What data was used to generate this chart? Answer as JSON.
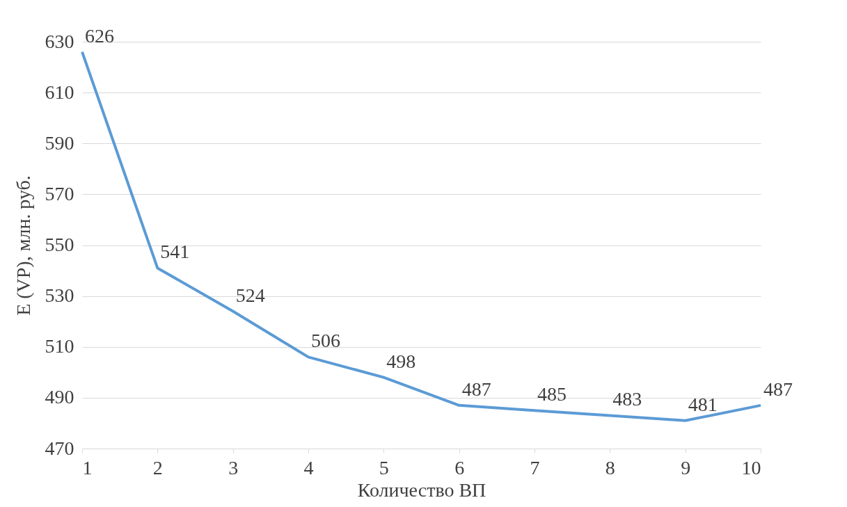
{
  "chart_data": {
    "type": "line",
    "xlabel": "Количество ВП",
    "ylabel": "E (VP),  млн. руб.",
    "x": [
      1,
      2,
      3,
      4,
      5,
      6,
      7,
      8,
      9,
      10
    ],
    "series": [
      {
        "color": "#5b9bd5",
        "values": [
          626,
          541,
          524,
          506,
          498,
          487,
          485,
          483,
          481,
          487
        ]
      }
    ],
    "xlim": [
      1,
      10
    ],
    "xticks": [
      1,
      2,
      3,
      4,
      5,
      6,
      7,
      8,
      9,
      10
    ],
    "ylim": [
      470,
      630
    ],
    "yticks": [
      470,
      490,
      510,
      530,
      550,
      570,
      590,
      610,
      630
    ],
    "grid": "y",
    "data_labels": true,
    "legend": false,
    "marker": "none",
    "line_style": "solid"
  }
}
